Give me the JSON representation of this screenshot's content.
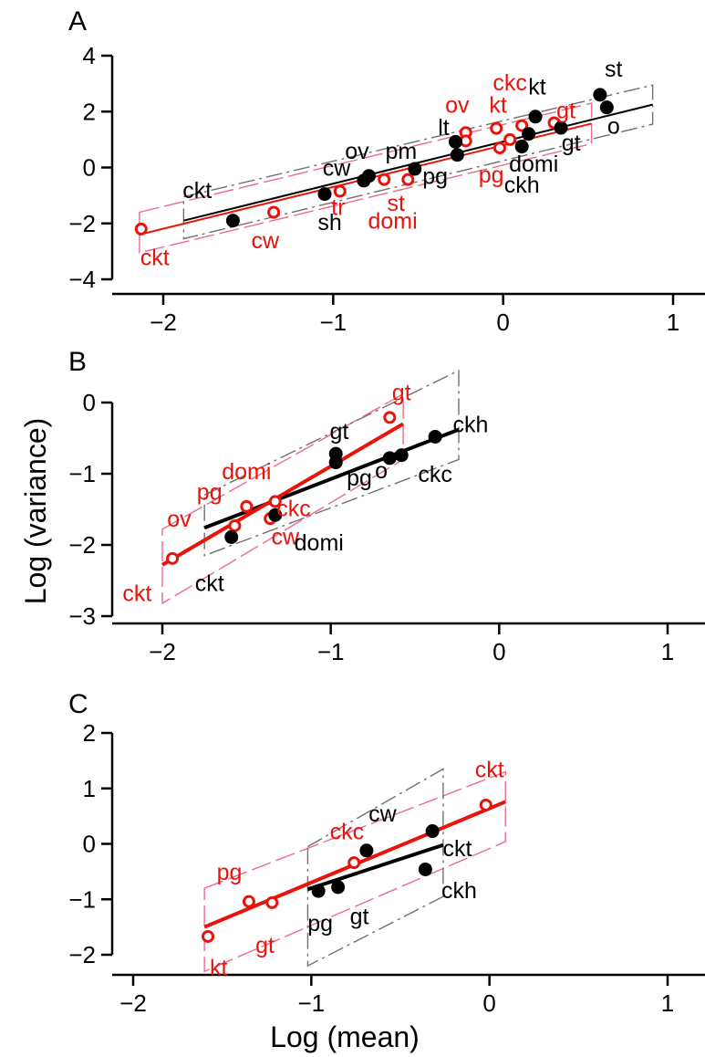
{
  "chart_data": {
    "type": "scatter",
    "xlabel": "Log (mean)",
    "ylabel": "Log (variance)",
    "colors": {
      "series_a": "#000000",
      "series_b": "#e8140c",
      "black_band": "#707070",
      "red_band": "#ee6a8c"
    },
    "panels": [
      {
        "label": "A",
        "xlim": [
          -2.35,
          1.3
        ],
        "ylim": [
          -4.5,
          4.4
        ],
        "xticks": [
          {
            "value": -2,
            "label": "−2"
          },
          {
            "value": -1,
            "label": "−1"
          },
          {
            "value": 0,
            "label": "0"
          },
          {
            "value": 1,
            "label": "1"
          }
        ],
        "yticks": [
          {
            "value": -4,
            "label": "−4"
          },
          {
            "value": -2,
            "label": "−2"
          },
          {
            "value": 0,
            "label": "0"
          },
          {
            "value": 2,
            "label": "2"
          },
          {
            "value": 4,
            "label": "4"
          }
        ],
        "black_points": [
          {
            "x": -1.59,
            "y": -1.9
          },
          {
            "x": -1.05,
            "y": -0.95
          },
          {
            "x": -0.82,
            "y": -0.47
          },
          {
            "x": -0.79,
            "y": -0.3
          },
          {
            "x": -0.52,
            "y": -0.05
          },
          {
            "x": -0.28,
            "y": 0.92
          },
          {
            "x": -0.27,
            "y": 0.45
          },
          {
            "x": 0.11,
            "y": 0.75
          },
          {
            "x": 0.15,
            "y": 1.2
          },
          {
            "x": 0.19,
            "y": 1.82
          },
          {
            "x": 0.34,
            "y": 1.42
          },
          {
            "x": 0.57,
            "y": 2.6
          },
          {
            "x": 0.61,
            "y": 2.15
          }
        ],
        "red_points": [
          {
            "x": -2.13,
            "y": -2.2
          },
          {
            "x": -1.35,
            "y": -1.6
          },
          {
            "x": -0.96,
            "y": -0.85
          },
          {
            "x": -0.7,
            "y": -0.43
          },
          {
            "x": -0.56,
            "y": -0.43
          },
          {
            "x": -0.22,
            "y": 1.25
          },
          {
            "x": -0.22,
            "y": 0.95
          },
          {
            "x": -0.04,
            "y": 1.4
          },
          {
            "x": -0.02,
            "y": 0.7
          },
          {
            "x": 0.04,
            "y": 1.0
          },
          {
            "x": 0.11,
            "y": 1.5
          },
          {
            "x": 0.3,
            "y": 1.6
          }
        ],
        "black_line": {
          "x": [
            -1.88,
            0.88
          ],
          "y": [
            -1.9,
            2.25
          ]
        },
        "red_line": {
          "x": [
            -2.14,
            0.52
          ],
          "y": [
            -2.4,
            1.57
          ]
        },
        "black_band": {
          "x": [
            -1.88,
            0.88
          ],
          "lower": [
            -2.55,
            1.55
          ],
          "upper": [
            -1.05,
            2.95
          ]
        },
        "red_band": {
          "x": [
            -2.14,
            0.52
          ],
          "lower": [
            -3.05,
            0.85
          ],
          "upper": [
            -1.6,
            2.3
          ]
        },
        "labels": [
          {
            "text": "ckt",
            "x": -1.8,
            "y": -0.8,
            "color": "black"
          },
          {
            "text": "cw",
            "x": -0.98,
            "y": 0.0,
            "color": "black"
          },
          {
            "text": "sh",
            "x": -1.02,
            "y": -1.95,
            "color": "black"
          },
          {
            "text": "ov",
            "x": -0.86,
            "y": 0.6,
            "color": "black"
          },
          {
            "text": "pm",
            "x": -0.6,
            "y": 0.6,
            "color": "black"
          },
          {
            "text": "lt",
            "x": -0.35,
            "y": 1.45,
            "color": "black"
          },
          {
            "text": "pg",
            "x": -0.4,
            "y": -0.3,
            "color": "black"
          },
          {
            "text": "kt",
            "x": 0.2,
            "y": 2.9,
            "color": "black"
          },
          {
            "text": "st",
            "x": 0.65,
            "y": 3.55,
            "color": "black"
          },
          {
            "text": "gt",
            "x": 0.4,
            "y": 0.9,
            "color": "black"
          },
          {
            "text": "o",
            "x": 0.65,
            "y": 1.5,
            "color": "black"
          },
          {
            "text": "domi",
            "x": 0.18,
            "y": 0.15,
            "color": "black"
          },
          {
            "text": "ckh",
            "x": 0.11,
            "y": -0.6,
            "color": "black"
          },
          {
            "text": "ckt",
            "x": -2.05,
            "y": -3.2,
            "color": "red"
          },
          {
            "text": "cw",
            "x": -1.4,
            "y": -2.6,
            "color": "red"
          },
          {
            "text": "tr",
            "x": -0.97,
            "y": -1.4,
            "color": "red"
          },
          {
            "text": "domi",
            "x": -0.65,
            "y": -1.9,
            "color": "red"
          },
          {
            "text": "st",
            "x": -0.63,
            "y": -1.25,
            "color": "red"
          },
          {
            "text": "pg",
            "x": -0.07,
            "y": -0.25,
            "color": "red"
          },
          {
            "text": "ov",
            "x": -0.27,
            "y": 2.25,
            "color": "red"
          },
          {
            "text": "kt",
            "x": -0.03,
            "y": 2.25,
            "color": "red"
          },
          {
            "text": "ckc",
            "x": 0.04,
            "y": 3.05,
            "color": "red"
          },
          {
            "text": "gt",
            "x": 0.37,
            "y": 2.05,
            "color": "red"
          }
        ]
      },
      {
        "label": "B",
        "xlim": [
          -2.35,
          1.3
        ],
        "ylim": [
          -3.4,
          0.5
        ],
        "xticks": [
          {
            "value": -2,
            "label": "−2"
          },
          {
            "value": -1,
            "label": "−1"
          },
          {
            "value": 0,
            "label": "0"
          },
          {
            "value": 1,
            "label": "1"
          }
        ],
        "yticks": [
          {
            "value": -3,
            "label": "−3"
          },
          {
            "value": -2,
            "label": "−2"
          },
          {
            "value": -1,
            "label": "−1"
          },
          {
            "value": 0,
            "label": "0"
          }
        ],
        "black_points": [
          {
            "x": -1.59,
            "y": -1.89
          },
          {
            "x": -1.33,
            "y": -1.58
          },
          {
            "x": -0.97,
            "y": -0.72
          },
          {
            "x": -0.97,
            "y": -0.84
          },
          {
            "x": -0.65,
            "y": -0.78
          },
          {
            "x": -0.58,
            "y": -0.74
          },
          {
            "x": -0.38,
            "y": -0.48
          }
        ],
        "red_points": [
          {
            "x": -1.94,
            "y": -2.19
          },
          {
            "x": -1.57,
            "y": -1.73
          },
          {
            "x": -1.5,
            "y": -1.46
          },
          {
            "x": -1.36,
            "y": -1.63
          },
          {
            "x": -1.33,
            "y": -1.39
          },
          {
            "x": -0.65,
            "y": -0.21
          }
        ],
        "black_line": {
          "x": [
            -1.75,
            -0.24
          ],
          "y": [
            -1.76,
            -0.38
          ]
        },
        "red_line": {
          "x": [
            -2.0,
            -0.57
          ],
          "y": [
            -2.28,
            -0.3
          ]
        },
        "black_band": {
          "x": [
            -1.75,
            -0.24
          ],
          "lower": [
            -2.15,
            -0.8
          ],
          "upper": [
            -1.3,
            0.45
          ]
        },
        "red_band": {
          "x": [
            -2.0,
            -0.57
          ],
          "lower": [
            -2.82,
            -0.8
          ],
          "upper": [
            -1.78,
            0.12
          ]
        },
        "labels": [
          {
            "text": "domi",
            "x": -1.5,
            "y": -0.96,
            "color": "red"
          },
          {
            "text": "pg",
            "x": -1.72,
            "y": -1.25,
            "color": "red"
          },
          {
            "text": "ov",
            "x": -1.9,
            "y": -1.63,
            "color": "red"
          },
          {
            "text": "ckt",
            "x": -2.15,
            "y": -2.67,
            "color": "red"
          },
          {
            "text": "ckc",
            "x": -1.22,
            "y": -1.48,
            "color": "red"
          },
          {
            "text": "cw",
            "x": -1.27,
            "y": -1.88,
            "color": "red"
          },
          {
            "text": "gt",
            "x": -0.58,
            "y": 0.15,
            "color": "red"
          },
          {
            "text": "gt",
            "x": -0.95,
            "y": -0.4,
            "color": "black"
          },
          {
            "text": "pg",
            "x": -0.83,
            "y": -1.05,
            "color": "black"
          },
          {
            "text": "o",
            "x": -0.7,
            "y": -0.95,
            "color": "black"
          },
          {
            "text": "ckc",
            "x": -0.38,
            "y": -1.0,
            "color": "black"
          },
          {
            "text": "ckh",
            "x": -0.17,
            "y": -0.3,
            "color": "black"
          },
          {
            "text": "domi",
            "x": -1.07,
            "y": -1.96,
            "color": "black"
          },
          {
            "text": "ckt",
            "x": -1.72,
            "y": -2.53,
            "color": "black"
          }
        ]
      },
      {
        "label": "C",
        "xlim": [
          -2.1,
          1.1
        ],
        "ylim": [
          -2.45,
          2.3
        ],
        "xticks": [
          {
            "value": -2,
            "label": "−2"
          },
          {
            "value": -1,
            "label": "−1"
          },
          {
            "value": 0,
            "label": "0"
          },
          {
            "value": 1,
            "label": "1"
          }
        ],
        "yticks": [
          {
            "value": -2,
            "label": "−2"
          },
          {
            "value": -1,
            "label": "−1"
          },
          {
            "value": 0,
            "label": "0"
          },
          {
            "value": 1,
            "label": "1"
          },
          {
            "value": 2,
            "label": "2"
          }
        ],
        "black_points": [
          {
            "x": -0.96,
            "y": -0.85
          },
          {
            "x": -0.85,
            "y": -0.78
          },
          {
            "x": -0.69,
            "y": -0.12
          },
          {
            "x": -0.32,
            "y": 0.23
          },
          {
            "x": -0.36,
            "y": -0.46
          }
        ],
        "red_points": [
          {
            "x": -1.58,
            "y": -1.67
          },
          {
            "x": -1.35,
            "y": -1.04
          },
          {
            "x": -1.22,
            "y": -1.06
          },
          {
            "x": -0.76,
            "y": -0.34
          },
          {
            "x": -0.02,
            "y": 0.7
          }
        ],
        "black_line": {
          "x": [
            -1.02,
            -0.26
          ],
          "y": [
            -0.82,
            -0.02
          ]
        },
        "red_line": {
          "x": [
            -1.6,
            0.09
          ],
          "y": [
            -1.5,
            0.76
          ]
        },
        "black_band": {
          "x": [
            -1.02,
            -0.26
          ],
          "lower": [
            -2.2,
            -0.95
          ],
          "upper": [
            -0.05,
            1.35
          ]
        },
        "red_band": {
          "x": [
            -1.6,
            0.09
          ],
          "lower": [
            -2.3,
            0.04
          ],
          "upper": [
            -0.8,
            1.3
          ]
        },
        "labels": [
          {
            "text": "pg",
            "x": -1.46,
            "y": -0.5,
            "color": "red"
          },
          {
            "text": "gt",
            "x": -1.26,
            "y": -1.82,
            "color": "red"
          },
          {
            "text": "kt",
            "x": -1.52,
            "y": -2.22,
            "color": "red"
          },
          {
            "text": "ckc",
            "x": -0.8,
            "y": 0.23,
            "color": "red"
          },
          {
            "text": "ckt",
            "x": 0.0,
            "y": 1.35,
            "color": "red"
          },
          {
            "text": "cw",
            "x": -0.6,
            "y": 0.55,
            "color": "black"
          },
          {
            "text": "ckt",
            "x": -0.18,
            "y": -0.07,
            "color": "black"
          },
          {
            "text": "ckh",
            "x": -0.17,
            "y": -0.83,
            "color": "black"
          },
          {
            "text": "pg",
            "x": -0.95,
            "y": -1.42,
            "color": "black"
          },
          {
            "text": "gt",
            "x": -0.73,
            "y": -1.3,
            "color": "black"
          }
        ]
      }
    ]
  }
}
